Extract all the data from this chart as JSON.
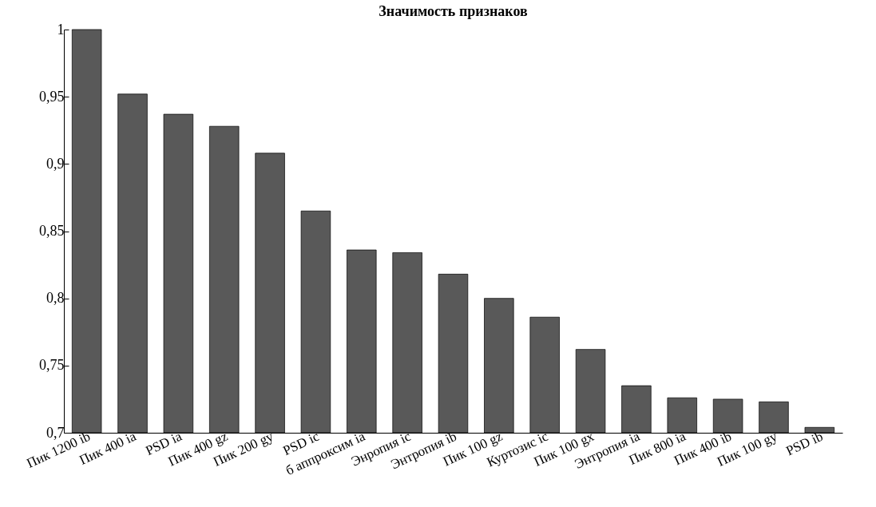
{
  "chart_data": {
    "type": "bar",
    "title": "Значимость признаков",
    "categories": [
      "Пик 1200 ib",
      "Пик 400 ia",
      "PSD ia",
      "Пик 400 gz",
      "Пик 200 gy",
      "PSD ic",
      "б аппроксим ia",
      "Энропия ic",
      "Энтропия ib",
      "Пик 100 gz",
      "Куртозис ic",
      "Пик 100 gx",
      "Энтропия ia",
      "Пик 800 ia",
      "Пик 400 ib",
      "Пик 100 gy",
      "PSD ib"
    ],
    "values": [
      1.0,
      0.952,
      0.937,
      0.928,
      0.908,
      0.865,
      0.836,
      0.834,
      0.818,
      0.8,
      0.786,
      0.762,
      0.735,
      0.726,
      0.725,
      0.723,
      0.704
    ],
    "color": "#595959",
    "ylim": [
      0.7,
      1
    ],
    "yticks": [
      {
        "value": 0.7,
        "label": "0,7"
      },
      {
        "value": 0.75,
        "label": "0,75"
      },
      {
        "value": 0.8,
        "label": "0,8"
      },
      {
        "value": 0.85,
        "label": "0,85"
      },
      {
        "value": 0.9,
        "label": "0,9"
      },
      {
        "value": 0.95,
        "label": "0,95"
      },
      1
    ],
    "grid": false
  }
}
